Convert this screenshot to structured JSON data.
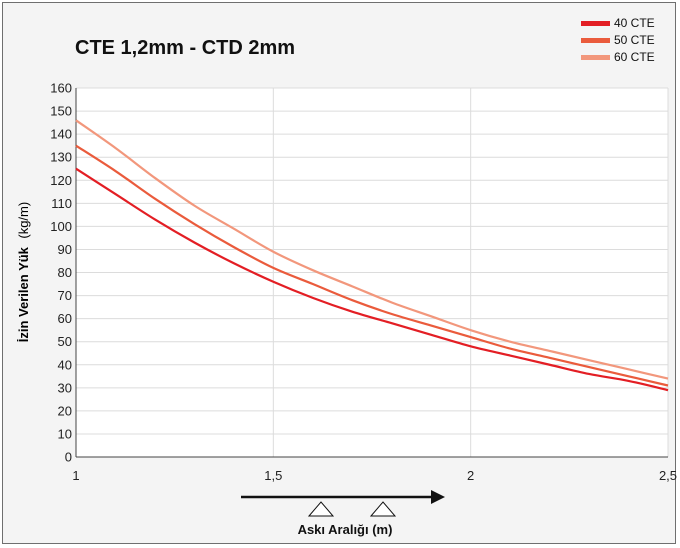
{
  "chart_data": {
    "type": "line",
    "title": "CTE 1,2mm - CTD 2mm",
    "ylabel_bold": "İzin Verilen Yük",
    "ylabel_unit": "(kg/m)",
    "xlabel": "Askı Aralığı (m)",
    "xlim": [
      1,
      2.5
    ],
    "ylim": [
      0,
      160
    ],
    "x_ticks": [
      1,
      1.5,
      2,
      2.5
    ],
    "x_tick_labels": [
      "1",
      "1,5",
      "2",
      "2,5"
    ],
    "y_ticks": [
      0,
      10,
      20,
      30,
      40,
      50,
      60,
      70,
      80,
      90,
      100,
      110,
      120,
      130,
      140,
      150,
      160
    ],
    "grid": true,
    "legend_position": "top-right",
    "series": [
      {
        "name": "40 CTE",
        "color": "#e31e24",
        "x": [
          1,
          1.1,
          1.2,
          1.3,
          1.4,
          1.5,
          1.6,
          1.7,
          1.8,
          1.9,
          2,
          2.1,
          2.2,
          2.3,
          2.4,
          2.5
        ],
        "y": [
          125,
          114,
          103,
          93,
          84,
          76,
          69,
          63,
          58,
          53,
          48,
          44,
          40,
          36,
          33,
          29
        ]
      },
      {
        "name": "50 CTE",
        "color": "#ea5b3c",
        "x": [
          1,
          1.1,
          1.2,
          1.3,
          1.4,
          1.5,
          1.6,
          1.7,
          1.8,
          1.9,
          2,
          2.1,
          2.2,
          2.3,
          2.4,
          2.5
        ],
        "y": [
          135,
          124,
          112,
          101,
          91,
          82,
          75,
          68,
          62,
          57,
          52,
          47,
          43,
          39,
          35,
          31
        ]
      },
      {
        "name": "60 CTE",
        "color": "#f2977c",
        "x": [
          1,
          1.1,
          1.2,
          1.3,
          1.4,
          1.5,
          1.6,
          1.7,
          1.8,
          1.9,
          2,
          2.1,
          2.2,
          2.3,
          2.4,
          2.5
        ],
        "y": [
          146,
          134,
          121,
          109,
          99,
          89,
          81,
          74,
          67,
          61,
          55,
          50,
          46,
          42,
          38,
          34
        ]
      }
    ]
  }
}
